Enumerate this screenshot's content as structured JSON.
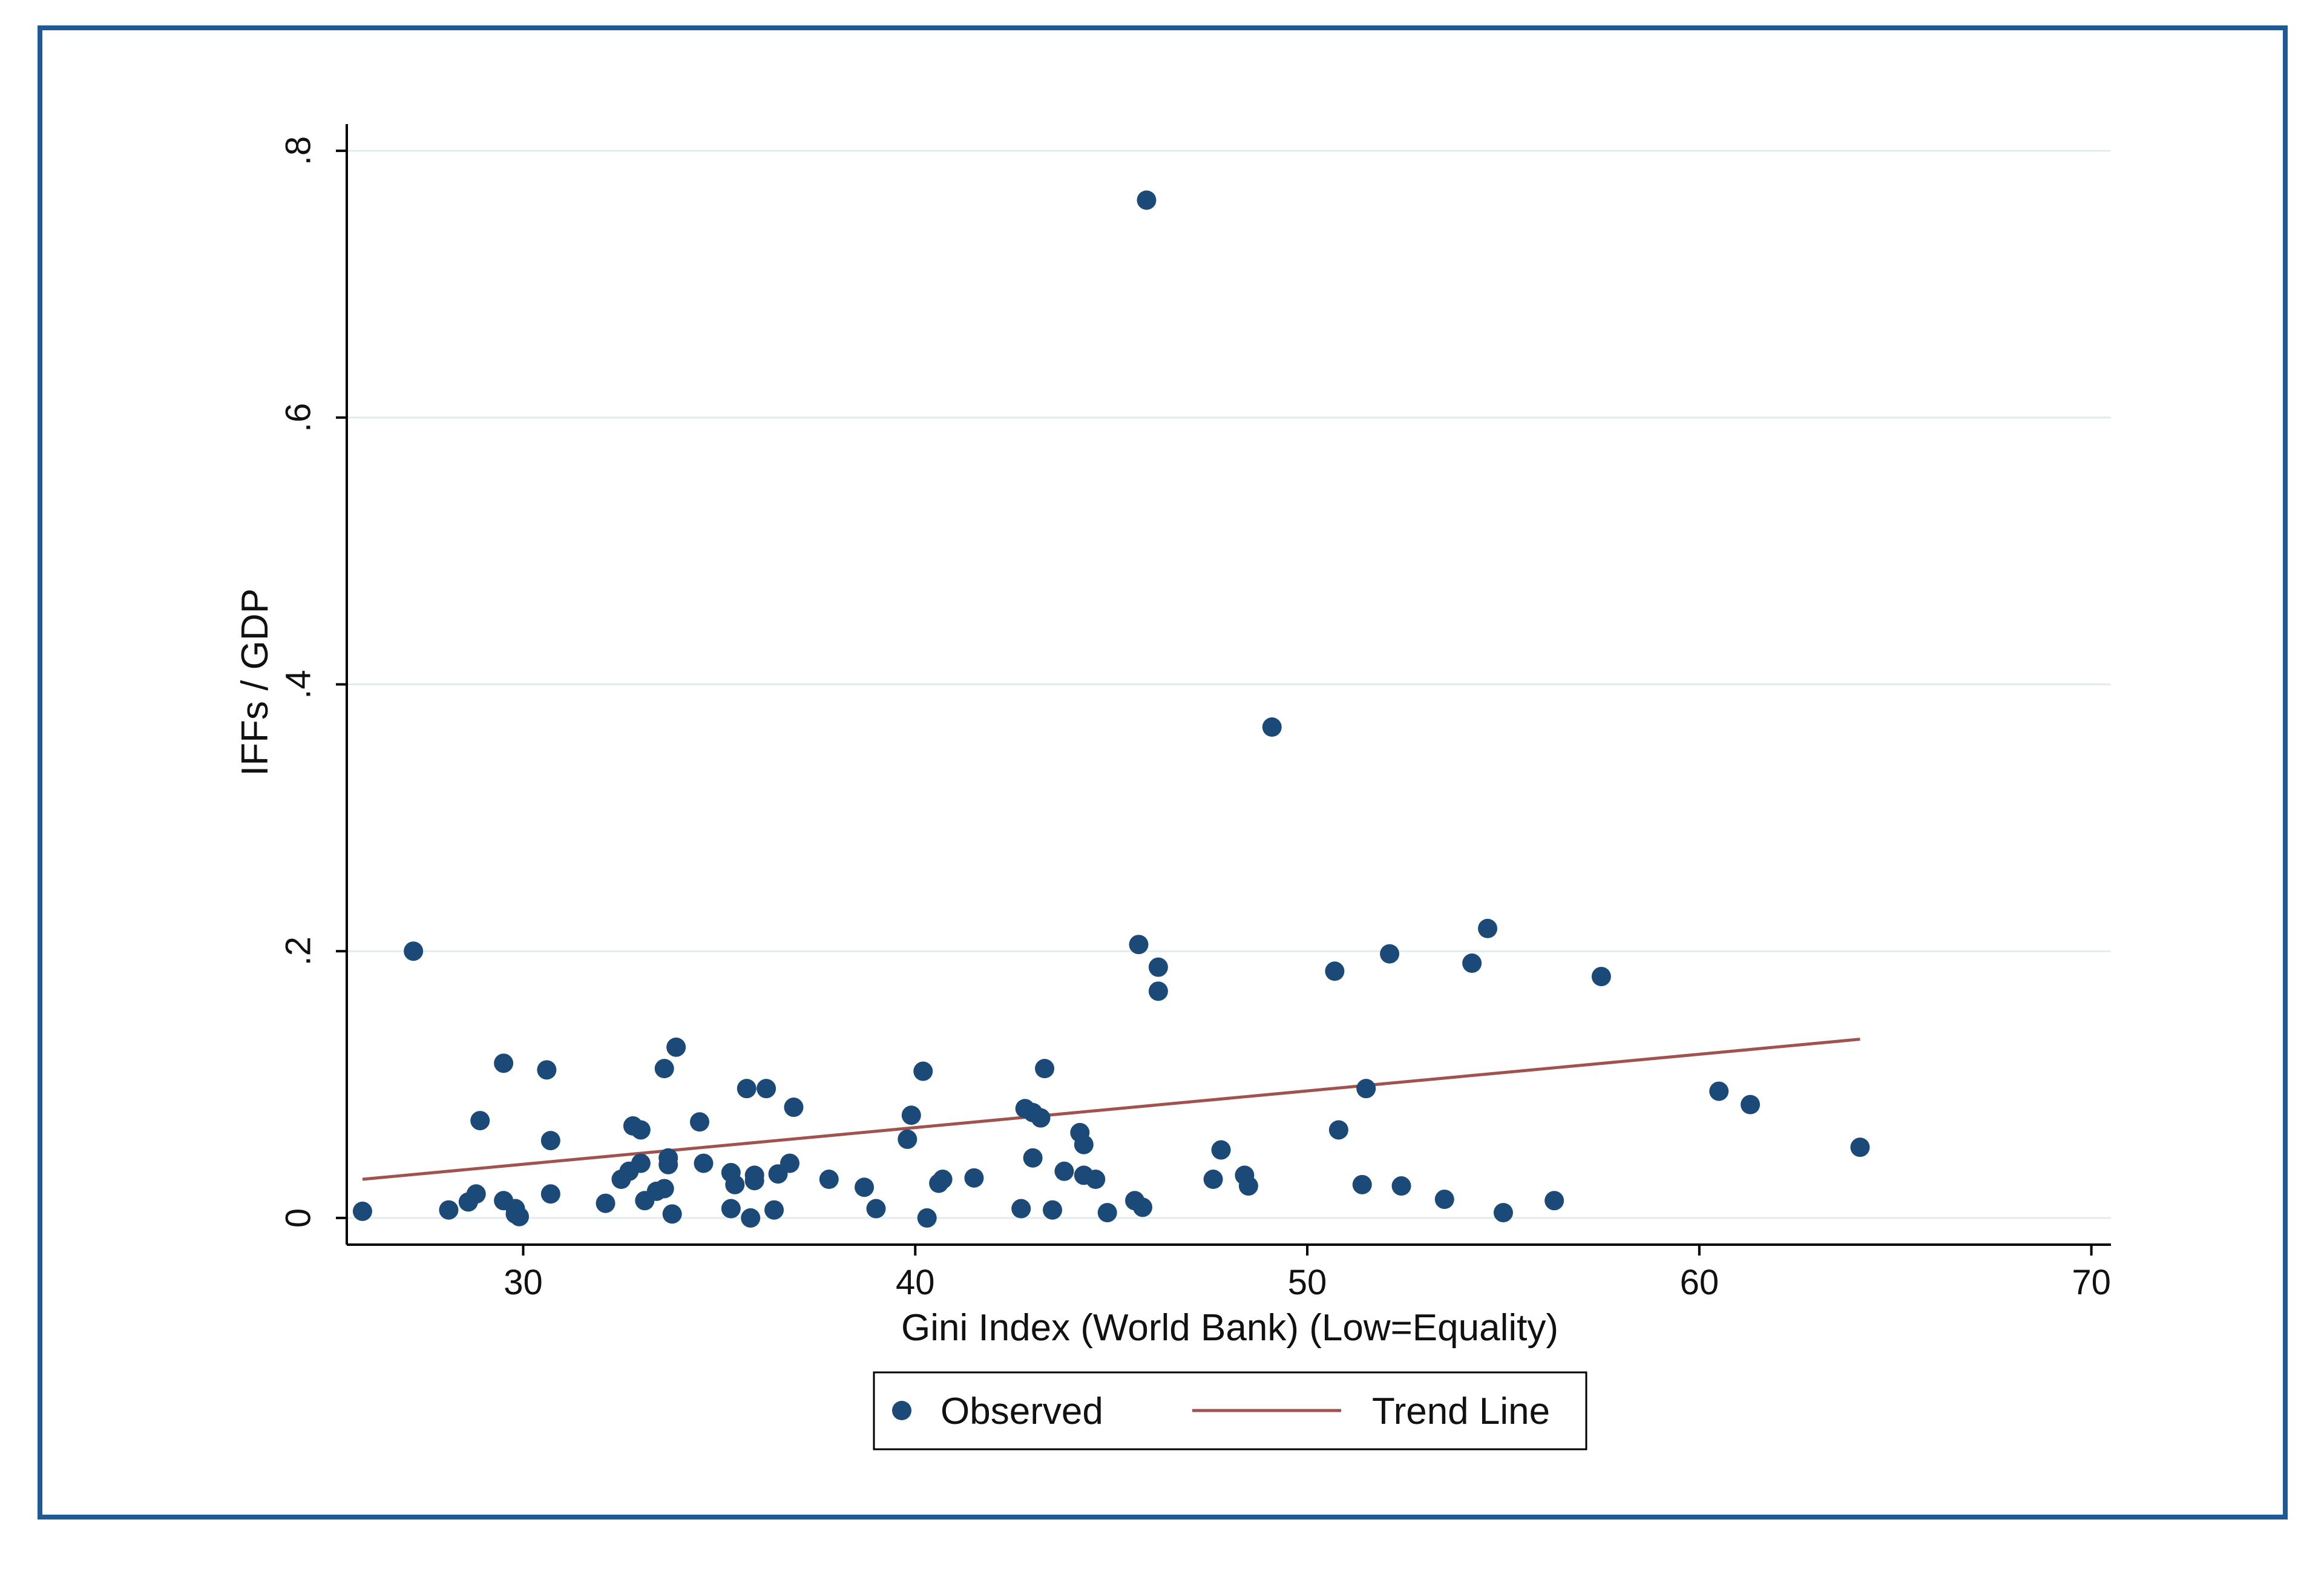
{
  "chart_data": {
    "type": "scatter",
    "xlabel": "Gini Index (World Bank) (Low=Equality)",
    "ylabel": "IFFs / GDP",
    "xlim": [
      25.5,
      70.5
    ],
    "ylim": [
      -0.02,
      0.82
    ],
    "x_ticks": [
      30,
      40,
      50,
      60,
      70
    ],
    "x_tick_labels": [
      "30",
      "40",
      "50",
      "60",
      "70"
    ],
    "y_ticks": [
      0,
      0.2,
      0.4,
      0.6,
      0.8
    ],
    "y_tick_labels": [
      "0",
      ".2",
      ".4",
      ".6",
      ".8"
    ],
    "grid": "horizontal",
    "legend": {
      "position": "bottom-center",
      "observed_label": "Observed",
      "trend_label": "Trend Line"
    },
    "colors": {
      "points": "#1b4a78",
      "trend": "#a0524f",
      "frame": "#1f5a96"
    },
    "series": [
      {
        "name": "Observed",
        "points": [
          [
            25.9,
            0.005
          ],
          [
            27.2,
            0.2
          ],
          [
            28.1,
            0.006
          ],
          [
            28.6,
            0.012
          ],
          [
            28.8,
            0.018
          ],
          [
            28.9,
            0.073
          ],
          [
            29.5,
            0.013
          ],
          [
            29.5,
            0.116
          ],
          [
            29.8,
            0.003
          ],
          [
            29.8,
            0.007
          ],
          [
            29.9,
            0.001
          ],
          [
            30.6,
            0.111
          ],
          [
            30.7,
            0.058
          ],
          [
            30.7,
            0.018
          ],
          [
            32.1,
            0.011
          ],
          [
            32.5,
            0.029
          ],
          [
            32.7,
            0.035
          ],
          [
            32.8,
            0.069
          ],
          [
            33.0,
            0.066
          ],
          [
            33.0,
            0.041
          ],
          [
            33.1,
            0.013
          ],
          [
            33.4,
            0.02
          ],
          [
            33.6,
            0.112
          ],
          [
            33.6,
            0.022
          ],
          [
            33.7,
            0.045
          ],
          [
            33.7,
            0.04
          ],
          [
            33.8,
            0.003
          ],
          [
            33.9,
            0.128
          ],
          [
            34.5,
            0.072
          ],
          [
            34.6,
            0.041
          ],
          [
            35.3,
            0.007
          ],
          [
            35.3,
            0.034
          ],
          [
            35.4,
            0.025
          ],
          [
            35.7,
            0.097
          ],
          [
            35.8,
            0.0
          ],
          [
            35.9,
            0.032
          ],
          [
            35.9,
            0.028
          ],
          [
            36.2,
            0.097
          ],
          [
            36.4,
            0.006
          ],
          [
            36.5,
            0.033
          ],
          [
            36.8,
            0.041
          ],
          [
            36.9,
            0.083
          ],
          [
            37.8,
            0.029
          ],
          [
            38.7,
            0.023
          ],
          [
            39.0,
            0.007
          ],
          [
            39.8,
            0.059
          ],
          [
            39.9,
            0.077
          ],
          [
            40.2,
            0.11
          ],
          [
            40.3,
            0.0
          ],
          [
            40.6,
            0.026
          ],
          [
            40.7,
            0.029
          ],
          [
            41.5,
            0.03
          ],
          [
            42.7,
            0.007
          ],
          [
            42.8,
            0.082
          ],
          [
            43.0,
            0.045
          ],
          [
            43.0,
            0.079
          ],
          [
            43.2,
            0.075
          ],
          [
            43.3,
            0.112
          ],
          [
            43.5,
            0.006
          ],
          [
            43.8,
            0.035
          ],
          [
            44.2,
            0.064
          ],
          [
            44.3,
            0.055
          ],
          [
            44.3,
            0.032
          ],
          [
            44.6,
            0.029
          ],
          [
            44.9,
            0.004
          ],
          [
            45.6,
            0.013
          ],
          [
            45.7,
            0.205
          ],
          [
            45.8,
            0.008
          ],
          [
            45.9,
            0.763
          ],
          [
            46.2,
            0.188
          ],
          [
            46.2,
            0.17
          ],
          [
            47.6,
            0.029
          ],
          [
            47.8,
            0.051
          ],
          [
            48.4,
            0.032
          ],
          [
            48.5,
            0.024
          ],
          [
            49.1,
            0.368
          ],
          [
            50.7,
            0.185
          ],
          [
            50.8,
            0.066
          ],
          [
            51.4,
            0.025
          ],
          [
            51.5,
            0.097
          ],
          [
            52.1,
            0.198
          ],
          [
            52.4,
            0.024
          ],
          [
            53.5,
            0.014
          ],
          [
            54.2,
            0.191
          ],
          [
            54.6,
            0.217
          ],
          [
            55.0,
            0.004
          ],
          [
            56.3,
            0.013
          ],
          [
            57.5,
            0.181
          ],
          [
            60.5,
            0.095
          ],
          [
            61.3,
            0.085
          ],
          [
            64.1,
            0.053
          ]
        ]
      },
      {
        "name": "Trend Line",
        "x": [
          25.9,
          64.1
        ],
        "y": [
          0.029,
          0.134
        ]
      }
    ]
  }
}
